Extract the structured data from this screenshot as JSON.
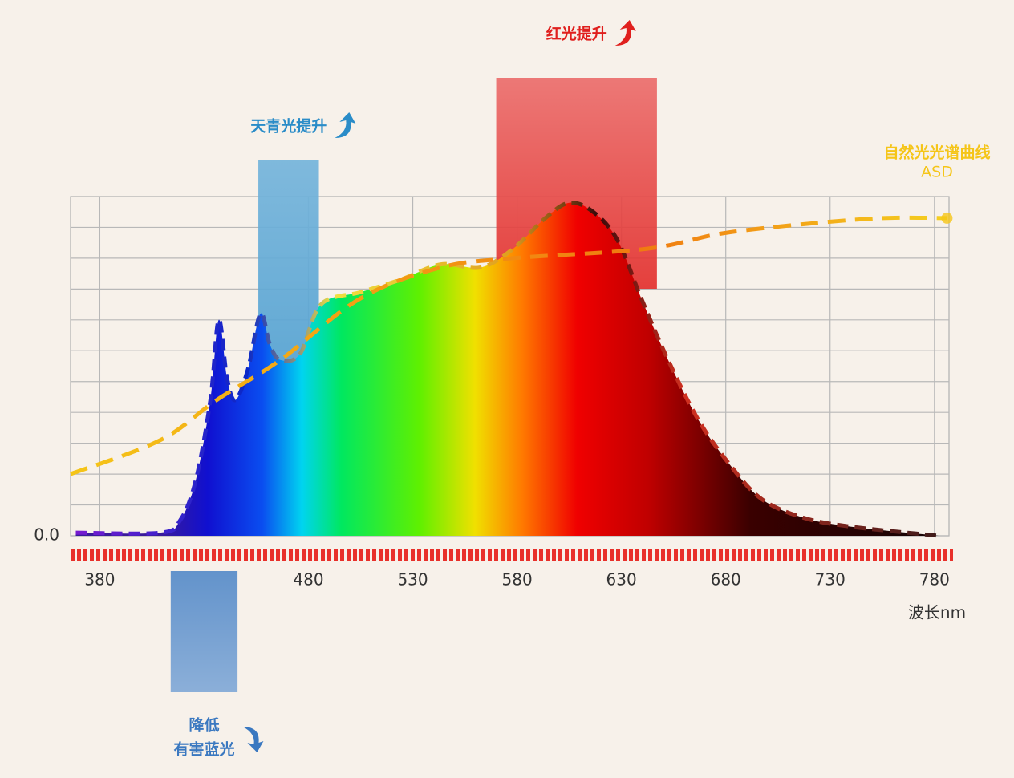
{
  "chart_data": {
    "type": "spectrum",
    "x_label": "波长nm",
    "xlim": [
      366,
      787
    ],
    "xticks": [
      380,
      480,
      530,
      580,
      630,
      680,
      730,
      780
    ],
    "ylim": [
      0,
      1.1
    ],
    "yticks": [
      {
        "value": 0,
        "label": "0.0"
      },
      {
        "value": 0.1,
        "label": null
      },
      {
        "value": 0.2,
        "label": null
      },
      {
        "value": 0.3,
        "label": null
      },
      {
        "value": 0.4,
        "label": null
      },
      {
        "value": 0.5,
        "label": null
      },
      {
        "value": 0.6,
        "label": null
      },
      {
        "value": 0.7,
        "label": null
      },
      {
        "value": 0.8,
        "label": null
      },
      {
        "value": 0.9,
        "label": null
      },
      {
        "value": 1.0,
        "label": null
      }
    ],
    "grid": true,
    "series": [
      {
        "kind": "area",
        "x": [
          368.5,
          409,
          418.5,
          426,
          433,
          437,
          441,
          445,
          451,
          457,
          461.5,
          466.5,
          476,
          486,
          505,
          524,
          543.5,
          562.5,
          578,
          593.5,
          605,
          616.5,
          628,
          639.5,
          651,
          666.5,
          682,
          697,
          716.5,
          739.5,
          782
        ],
        "values": [
          0.01,
          0.01,
          0.05,
          0.18,
          0.44,
          0.7,
          0.51,
          0.44,
          0.54,
          0.72,
          0.62,
          0.57,
          0.59,
          0.75,
          0.79,
          0.83,
          0.88,
          0.87,
          0.93,
          1.03,
          1.08,
          1.05,
          0.96,
          0.77,
          0.59,
          0.38,
          0.23,
          0.12,
          0.06,
          0.03,
          0.0
        ]
      },
      {
        "kind": "line",
        "name": "自然光光谱曲线",
        "abbr": "ASD",
        "color": "#f5c518",
        "x": [
          366,
          409,
          436,
          466.5,
          505,
          543.5,
          578,
          641.5,
          678,
          716.5,
          755,
          786
        ],
        "values": [
          0.2,
          0.31,
          0.44,
          0.57,
          0.77,
          0.87,
          0.9,
          0.93,
          0.98,
          1.01,
          1.03,
          1.03
        ]
      }
    ],
    "highlights": [
      {
        "label": [
          "天青光提升"
        ],
        "x": [
          456,
          485
        ],
        "color": "#2a8cc8"
      },
      {
        "label": [
          "红光提升"
        ],
        "x": [
          570,
          647
        ],
        "color": "#e0201e"
      },
      {
        "label": [
          "降低",
          "有害蓝光"
        ],
        "x": [
          414,
          446
        ],
        "color": "#3a78c0"
      }
    ]
  }
}
